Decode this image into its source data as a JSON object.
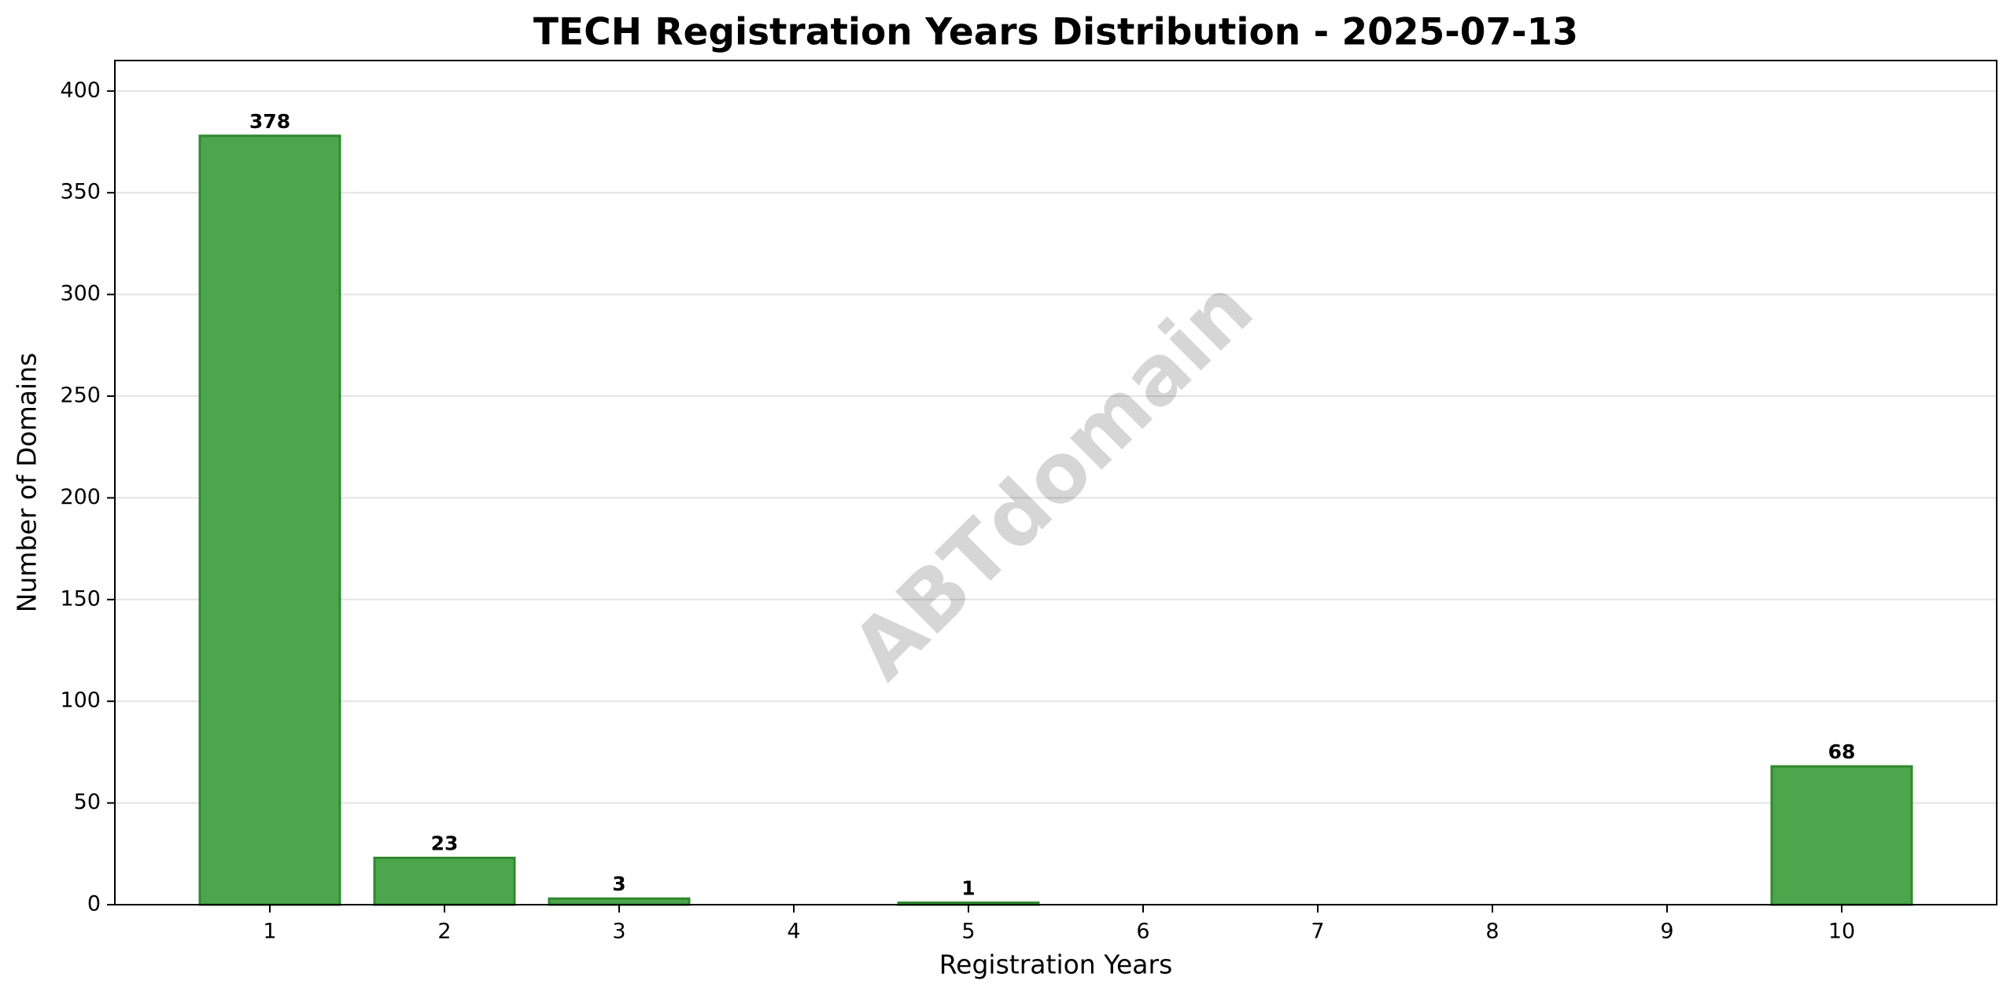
{
  "chart_data": {
    "type": "bar",
    "title": "TECH Registration Years Distribution - 2025-07-13",
    "xlabel": "Registration Years",
    "ylabel": "Number of Domains",
    "categories": [
      "1",
      "2",
      "3",
      "4",
      "5",
      "6",
      "7",
      "8",
      "9",
      "10"
    ],
    "values": [
      378,
      23,
      3,
      0,
      1,
      0,
      0,
      0,
      0,
      68
    ],
    "data_labels": [
      "378",
      "23",
      "3",
      "",
      "1",
      "",
      "",
      "",
      "",
      "68"
    ],
    "ylim": [
      0,
      415
    ],
    "yticks": [
      0,
      50,
      100,
      150,
      200,
      250,
      300,
      350,
      400
    ],
    "grid": "y",
    "legend": "none",
    "bar_color": "#4ca64c",
    "bar_edge_color": "#2f8a2f",
    "watermark": "ABTdomain"
  }
}
